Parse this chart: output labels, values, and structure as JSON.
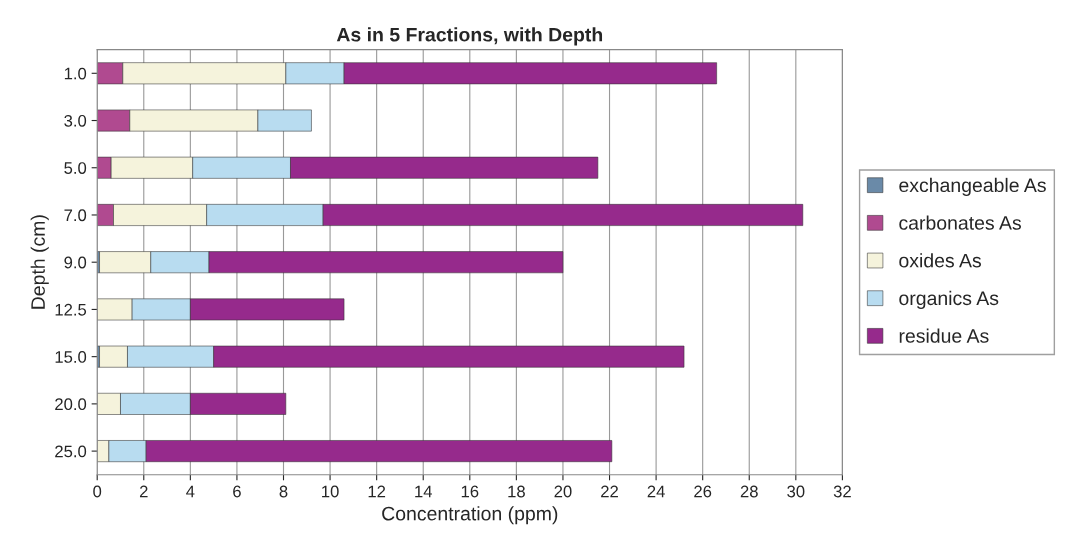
{
  "chart_data": {
    "type": "bar",
    "orientation": "horizontal",
    "stacked": true,
    "title": "As in 5 Fractions, with Depth",
    "xlabel": "Concentration (ppm)",
    "ylabel": "Depth (cm)",
    "categories": [
      "1.0",
      "3.0",
      "5.0",
      "7.0",
      "9.0",
      "12.5",
      "15.0",
      "20.0",
      "25.0"
    ],
    "series": [
      {
        "name": "exchangeable As",
        "color": "#6a8aa8",
        "values": [
          null,
          null,
          null,
          null,
          0.1,
          null,
          0.1,
          null,
          null
        ]
      },
      {
        "name": "carbonates As",
        "color": "#b04a90",
        "values": [
          1.1,
          1.4,
          0.6,
          0.7,
          null,
          null,
          null,
          null,
          null
        ]
      },
      {
        "name": "oxides As",
        "color": "#f5f3dc",
        "values": [
          7.0,
          5.5,
          3.5,
          4.0,
          2.2,
          1.5,
          1.2,
          1.0,
          0.5
        ]
      },
      {
        "name": "organics As",
        "color": "#b8dcf0",
        "values": [
          2.5,
          2.3,
          4.2,
          5.0,
          2.5,
          2.5,
          3.7,
          3.0,
          1.6
        ]
      },
      {
        "name": "residue As",
        "color": "#962a8c",
        "values": [
          16.0,
          null,
          13.2,
          20.6,
          15.2,
          6.6,
          20.2,
          4.1,
          20.0
        ]
      }
    ],
    "xlim": [
      0,
      32
    ],
    "xticks": [
      0,
      2,
      4,
      6,
      8,
      10,
      12,
      14,
      16,
      18,
      20,
      22,
      24,
      26,
      28,
      30,
      32
    ],
    "grid": "x",
    "legend": "right"
  }
}
